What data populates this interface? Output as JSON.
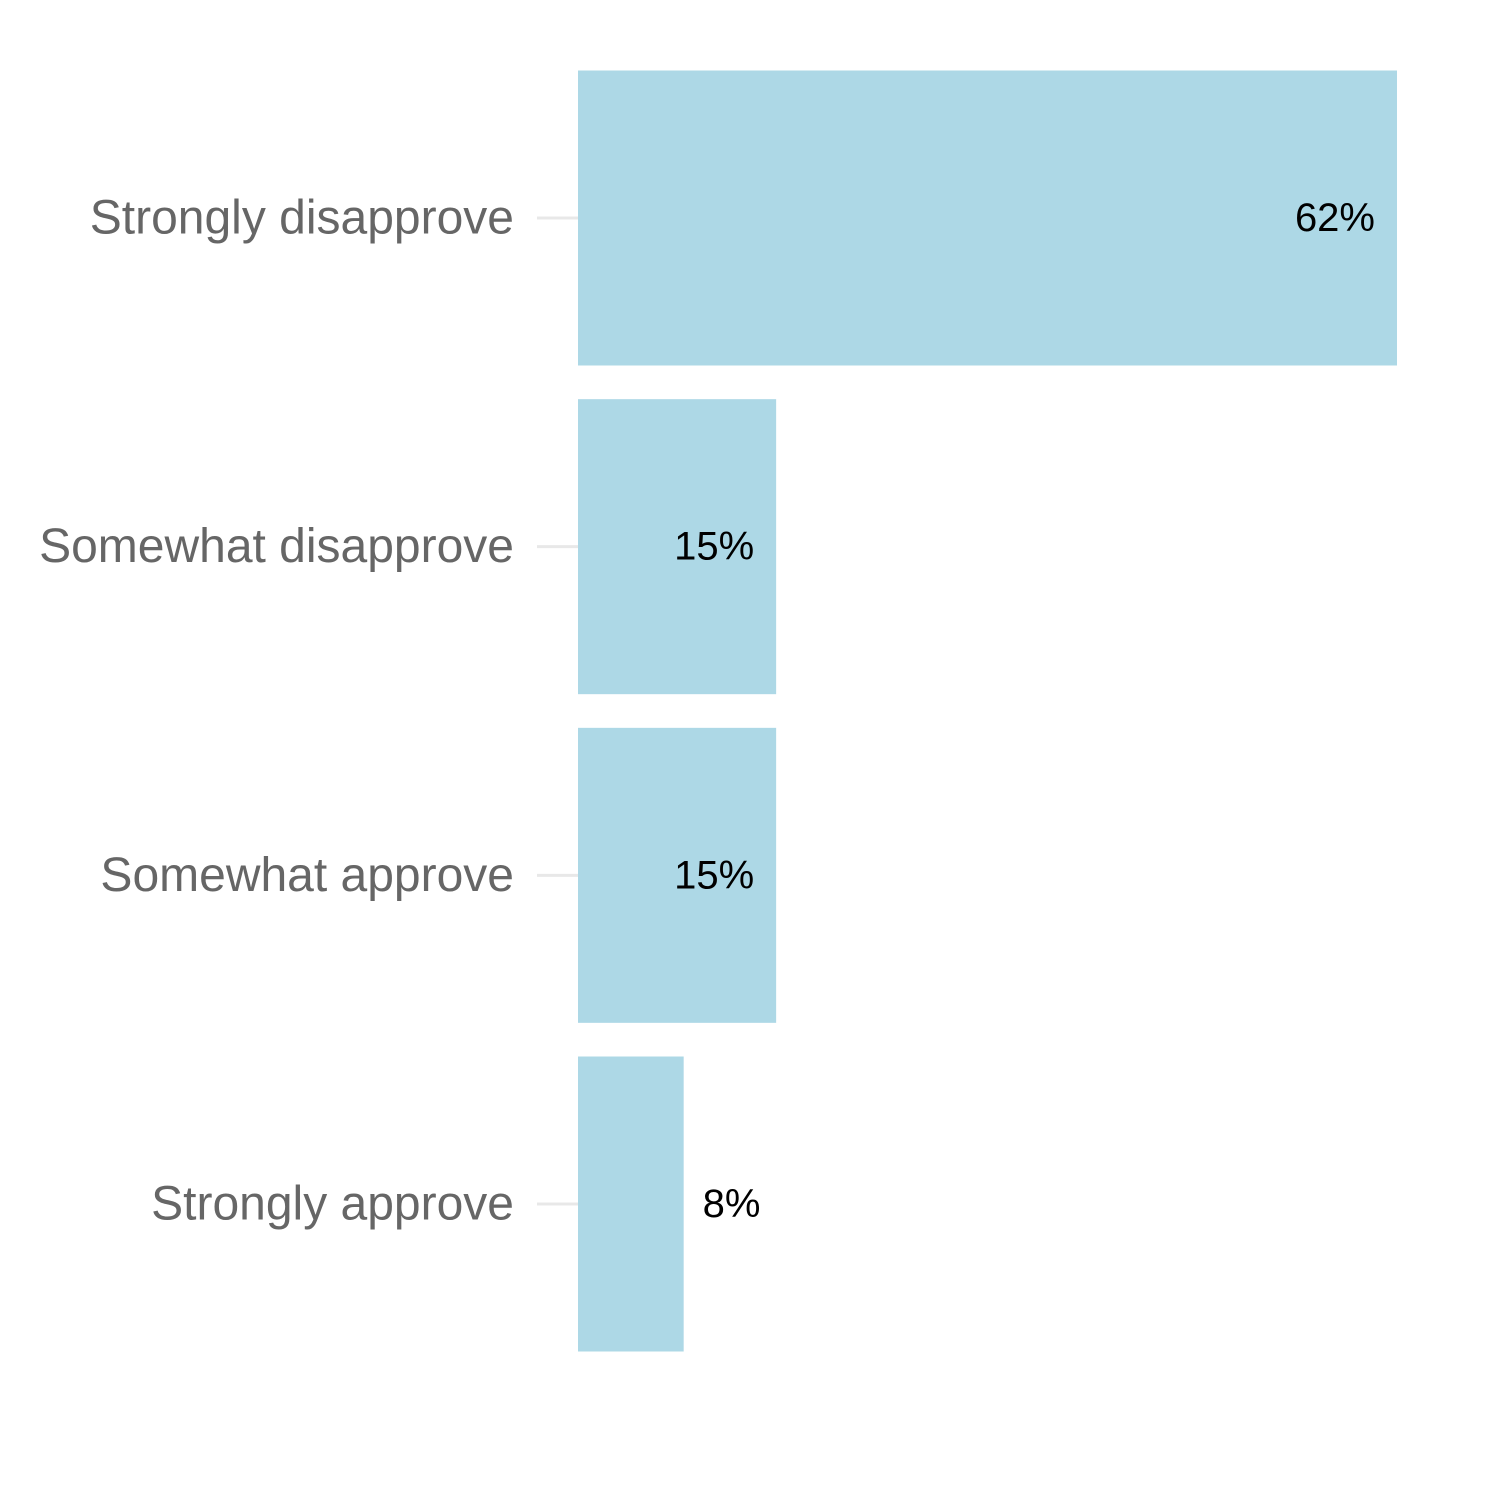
{
  "chart_data": {
    "type": "bar",
    "orientation": "horizontal",
    "categories": [
      "Strongly disapprove",
      "Somewhat disapprove",
      "Somewhat approve",
      "Strongly approve"
    ],
    "values": [
      62,
      15,
      15,
      8
    ],
    "value_labels": [
      "62%",
      "15%",
      "15%",
      "8%"
    ],
    "title": "",
    "xlabel": "",
    "ylabel": "",
    "xlim": [
      0,
      62
    ],
    "grid": false,
    "bar_color": "#add8e6"
  }
}
